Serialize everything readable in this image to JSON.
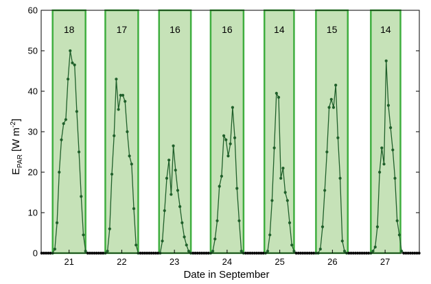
{
  "chart_data": {
    "type": "line",
    "xlabel": "Date in September",
    "ylabel": {
      "main": "E",
      "sub": "PAR",
      "unit_pre": " [W m",
      "sup": "-2",
      "unit_post": "]"
    },
    "ylim": [
      0,
      60
    ],
    "yticks": [
      0,
      10,
      20,
      30,
      40,
      50,
      60
    ],
    "xlim": [
      20.47,
      27.65
    ],
    "xticks": [
      21,
      22,
      23,
      24,
      25,
      26,
      27
    ],
    "series_color": "#1f5f2a",
    "box_stroke": "#3fae3f",
    "box_fill": "#c6e2b8",
    "days": [
      {
        "day": 21,
        "box_start": 20.6875,
        "box_end": 21.3125,
        "label": "18",
        "x": [
          20.4792,
          20.5208,
          20.5625,
          20.6042,
          20.6458,
          20.6875,
          20.7292,
          20.7708,
          20.8125,
          20.8542,
          20.8958,
          20.9375,
          20.9792,
          21.0208,
          21.0625,
          21.1042,
          21.1458,
          21.1875,
          21.2292,
          21.2708,
          21.3125,
          21.3542,
          21.3958,
          21.4375
        ],
        "y": [
          0,
          0,
          0,
          0,
          0,
          0,
          1,
          7.5,
          20,
          28,
          32,
          33,
          43,
          50,
          47,
          46.5,
          35,
          25,
          14,
          4.5,
          0.5,
          0,
          0,
          0
        ]
      },
      {
        "day": 22,
        "box_start": 21.6875,
        "box_end": 22.3125,
        "label": "17",
        "x": [
          21.4792,
          21.5208,
          21.5625,
          21.6042,
          21.6458,
          21.6875,
          21.7292,
          21.7708,
          21.8125,
          21.8542,
          21.8958,
          21.9375,
          21.9792,
          22.0208,
          22.0625,
          22.1042,
          22.1458,
          22.1875,
          22.2292,
          22.2708,
          22.3125,
          22.3542,
          22.3958,
          22.4375
        ],
        "y": [
          0,
          0,
          0,
          0,
          0,
          0,
          0.5,
          6,
          19.5,
          29,
          43,
          35.5,
          39,
          39,
          37.5,
          30,
          24,
          22,
          11,
          2,
          0,
          0,
          0,
          0
        ]
      },
      {
        "day": 23,
        "box_start": 22.7083,
        "box_end": 23.3125,
        "label": "16",
        "x": [
          22.4792,
          22.5208,
          22.5625,
          22.6042,
          22.6458,
          22.6875,
          22.7292,
          22.7708,
          22.8125,
          22.8542,
          22.8958,
          22.9375,
          22.9792,
          23.0208,
          23.0625,
          23.1042,
          23.1458,
          23.1875,
          23.2292,
          23.2708,
          23.3125,
          23.3542,
          23.3958,
          23.4375
        ],
        "y": [
          0,
          0,
          0,
          0,
          0,
          0,
          0,
          3,
          10.5,
          18.5,
          23,
          14.5,
          26.5,
          20.5,
          15.5,
          11.5,
          7.5,
          4,
          2,
          0.5,
          0,
          0,
          0,
          0
        ]
      },
      {
        "day": 24,
        "box_start": 23.6875,
        "box_end": 24.3125,
        "label": "16",
        "x": [
          23.4792,
          23.5208,
          23.5625,
          23.6042,
          23.6458,
          23.6875,
          23.7292,
          23.7708,
          23.8125,
          23.8542,
          23.8958,
          23.9375,
          23.9792,
          24.0208,
          24.0625,
          24.1042,
          24.1458,
          24.1875,
          24.2292,
          24.2708,
          24.3125,
          24.3542,
          24.3958,
          24.4375
        ],
        "y": [
          0,
          0,
          0,
          0,
          0,
          0,
          0.5,
          3.5,
          8,
          16.5,
          19,
          29,
          28,
          24,
          27,
          36,
          28.5,
          16,
          8,
          0.5,
          0,
          0,
          0,
          0
        ]
      },
      {
        "day": 25,
        "box_start": 24.7083,
        "box_end": 25.2708,
        "label": "14",
        "x": [
          24.4792,
          24.5208,
          24.5625,
          24.6042,
          24.6458,
          24.6875,
          24.7292,
          24.7708,
          24.8125,
          24.8542,
          24.8958,
          24.9375,
          24.9792,
          25.0208,
          25.0625,
          25.1042,
          25.1458,
          25.1875,
          25.2292,
          25.2708,
          25.3125,
          25.3542,
          25.3958,
          25.4375
        ],
        "y": [
          0,
          0,
          0,
          0,
          0,
          0,
          0,
          0.5,
          4.5,
          13,
          26,
          39.5,
          38.5,
          18.5,
          21,
          15,
          13,
          7.5,
          2,
          0.5,
          0,
          0,
          0,
          0
        ]
      },
      {
        "day": 26,
        "box_start": 25.6875,
        "box_end": 26.2917,
        "label": "15",
        "x": [
          25.4792,
          25.5208,
          25.5625,
          25.6042,
          25.6458,
          25.6875,
          25.7292,
          25.7708,
          25.8125,
          25.8542,
          25.8958,
          25.9375,
          25.9792,
          26.0208,
          26.0625,
          26.1042,
          26.1458,
          26.1875,
          26.2292,
          26.2708,
          26.3125,
          26.3542,
          26.3958,
          26.4375
        ],
        "y": [
          0,
          0,
          0,
          0,
          0,
          0,
          0,
          1,
          6.5,
          15.5,
          25,
          36,
          38,
          36,
          41.5,
          28.5,
          18.5,
          3,
          0.5,
          0,
          0,
          0,
          0,
          0
        ]
      },
      {
        "day": 27,
        "box_start": 26.7292,
        "box_end": 27.2917,
        "label": "14",
        "x": [
          26.4792,
          26.5208,
          26.5625,
          26.6042,
          26.6458,
          26.6875,
          26.7292,
          26.7708,
          26.8125,
          26.8542,
          26.8958,
          26.9375,
          26.9792,
          27.0208,
          27.0625,
          27.1042,
          27.1458,
          27.1875,
          27.2292,
          27.2708,
          27.3125,
          27.3542,
          27.3958,
          27.4375,
          27.4792,
          27.5208,
          27.5625,
          27.6042,
          27.6458
        ],
        "y": [
          0,
          0,
          0,
          0,
          0,
          0,
          0,
          0.5,
          1.5,
          6.5,
          20,
          26,
          22,
          47.5,
          36.5,
          31,
          25.5,
          18.5,
          8,
          4.5,
          0.5,
          0,
          0,
          0,
          0,
          0,
          0,
          0,
          0
        ]
      }
    ]
  }
}
